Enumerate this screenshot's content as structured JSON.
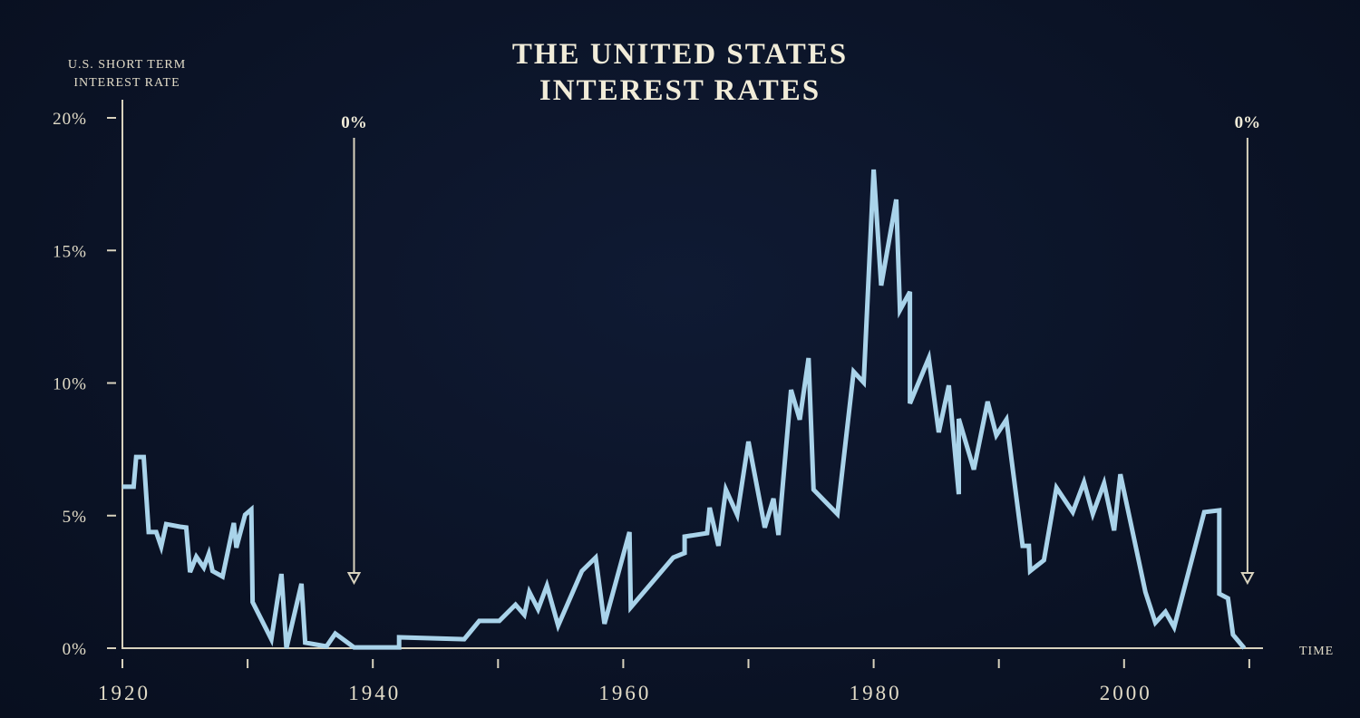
{
  "chart_data": {
    "type": "line",
    "title": [
      "THE UNITED STATES",
      "INTEREST RATES"
    ],
    "ylabel": [
      "U.S. SHORT TERM",
      "INTEREST RATE"
    ],
    "xlabel": "TIME",
    "xlim": [
      1920,
      2011
    ],
    "ylim": [
      0,
      20
    ],
    "x_ticks": [
      1920,
      1930,
      1940,
      1950,
      1960,
      1970,
      1980,
      1990,
      2000,
      2010
    ],
    "x_tick_labels": [
      "1920",
      "",
      "1940",
      "",
      "1960",
      "",
      "1980",
      "",
      "2000",
      ""
    ],
    "y_ticks": [
      0,
      5,
      10,
      15,
      20
    ],
    "y_tick_labels": [
      "0%",
      "5%",
      "10%",
      "15%",
      "20%"
    ],
    "grid": false,
    "line_color": "#a9d3ea",
    "annotations": [
      {
        "label": "0%",
        "x": 1938.5,
        "type": "down-arrow"
      },
      {
        "label": "0%",
        "x": 2010.0,
        "type": "down-arrow"
      }
    ],
    "series": [
      {
        "x": [
          1920.0,
          1920.9,
          1921.1,
          1921.7,
          1922.1,
          1922.7,
          1923.1,
          1923.5,
          1924.6,
          1925.1,
          1925.4,
          1925.9,
          1926.5,
          1926.9,
          1927.2,
          1928.0,
          1928.9,
          1929.1,
          1929.8,
          1930.3,
          1930.4,
          1931.9,
          1932.7,
          1933.1,
          1934.3,
          1934.6,
          1936.3,
          1937.0,
          1938.5,
          1942.1,
          1942.1,
          1947.3,
          1948.5,
          1950.1,
          1951.4,
          1952.1,
          1952.5,
          1953.2,
          1953.9,
          1954.8,
          1956.7,
          1957.8,
          1958.5,
          1960.5,
          1960.6,
          1964.0,
          1964.9,
          1964.9,
          1966.7,
          1966.9,
          1967.6,
          1968.2,
          1969.1,
          1970.0,
          1971.3,
          1972.0,
          1972.4,
          1973.4,
          1974.1,
          1974.8,
          1975.2,
          1977.1,
          1978.4,
          1979.2,
          1980.0,
          1980.6,
          1981.8,
          1982.1,
          1982.9,
          1982.9,
          1984.4,
          1985.2,
          1986.0,
          1986.8,
          1986.8,
          1988.0,
          1989.1,
          1989.8,
          1990.6,
          1991.9,
          1992.4,
          1992.5,
          1993.6,
          1994.6,
          1995.9,
          1996.8,
          1997.5,
          1998.4,
          1999.2,
          1999.7,
          2001.7,
          2002.5,
          2003.3,
          2004.0,
          2006.4,
          2007.6,
          2007.6,
          2008.3,
          2008.7,
          2009.6
        ],
        "y": [
          6.09,
          6.09,
          7.21,
          7.21,
          4.38,
          4.38,
          3.83,
          4.68,
          4.58,
          4.55,
          2.87,
          3.45,
          3.04,
          3.56,
          2.91,
          2.7,
          4.72,
          3.79,
          5.03,
          5.23,
          1.74,
          0.34,
          2.8,
          0.0,
          2.43,
          0.21,
          0.07,
          0.55,
          0.03,
          0.03,
          0.41,
          0.34,
          1.03,
          1.03,
          1.64,
          1.26,
          2.12,
          1.47,
          2.36,
          0.85,
          2.91,
          3.42,
          0.92,
          4.38,
          1.54,
          3.42,
          3.59,
          4.21,
          4.34,
          5.3,
          3.86,
          5.98,
          5.03,
          7.79,
          4.55,
          5.64,
          4.27,
          9.74,
          8.62,
          10.94,
          5.98,
          5.06,
          10.43,
          10.02,
          18.05,
          13.68,
          16.92,
          12.75,
          13.44,
          9.23,
          10.94,
          8.14,
          9.91,
          5.81,
          8.65,
          6.74,
          9.3,
          8.03,
          8.62,
          3.86,
          3.86,
          2.91,
          3.32,
          6.05,
          5.13,
          6.26,
          5.06,
          6.22,
          4.44,
          6.56,
          2.12,
          0.96,
          1.37,
          0.79,
          5.13,
          5.2,
          2.05,
          1.88,
          0.51,
          0.0
        ]
      }
    ]
  }
}
